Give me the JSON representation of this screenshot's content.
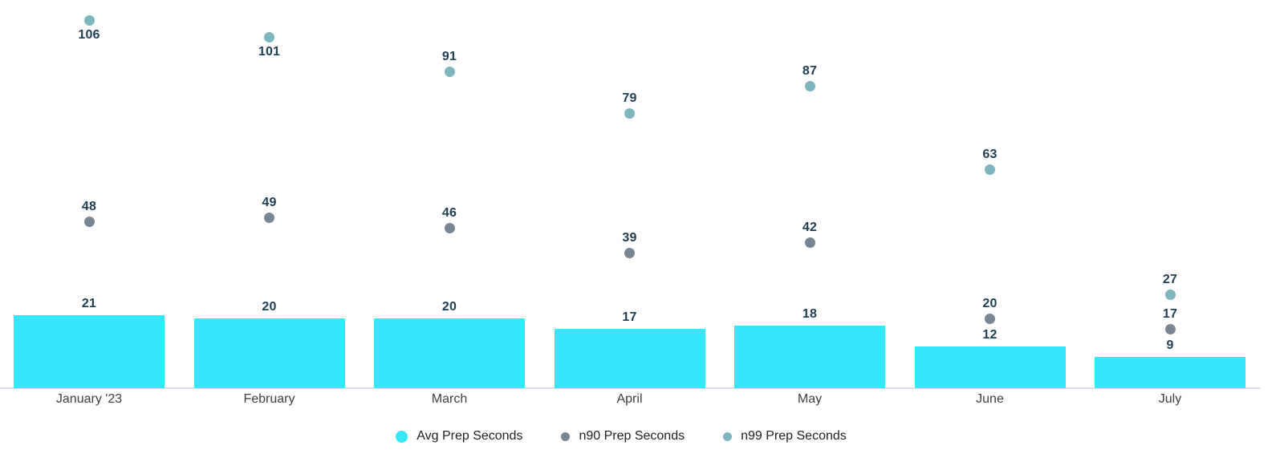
{
  "chart_data": {
    "type": "bar",
    "title": "",
    "xlabel": "",
    "ylabel": "",
    "categories": [
      "January '23",
      "February",
      "March",
      "April",
      "May",
      "June",
      "July"
    ],
    "series": [
      {
        "name": "Avg Prep Seconds",
        "mark": "bar",
        "color": "#36E6F9",
        "values": [
          21,
          20,
          20,
          17,
          18,
          12,
          9
        ]
      },
      {
        "name": "n90 Prep Seconds",
        "mark": "point",
        "color": "#788693",
        "values": [
          48,
          49,
          46,
          39,
          42,
          20,
          17
        ]
      },
      {
        "name": "n99 Prep Seconds",
        "mark": "point",
        "color": "#7EB5BF",
        "values": [
          106,
          101,
          91,
          79,
          87,
          63,
          27
        ]
      }
    ],
    "ylim": [
      0,
      112
    ],
    "grid": false,
    "legend_position": "bottom",
    "value_labels_shown": true,
    "value_label_color": "#1E3E54",
    "axis_line_color": "#D9DEE9",
    "x_tick_color": "#3C4043",
    "legend_text_color": "#202124",
    "background": "#FFFFFF"
  }
}
